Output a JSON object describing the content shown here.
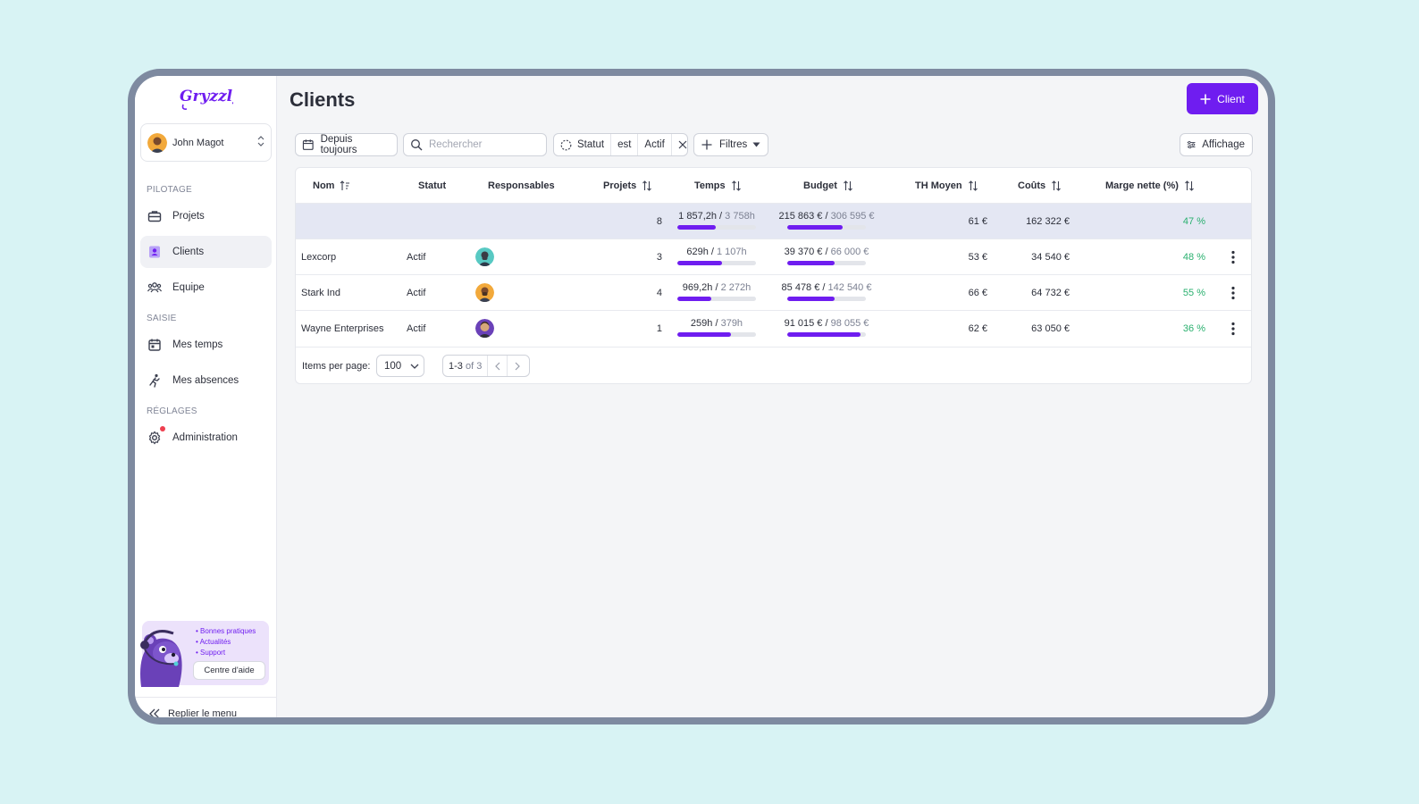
{
  "app": {
    "logo_text": "Gryzzly"
  },
  "user": {
    "name": "John Magot"
  },
  "sidebar": {
    "sections": [
      {
        "label": "PILOTAGE"
      },
      {
        "label": "SAISIE"
      },
      {
        "label": "RÉGLAGES"
      }
    ],
    "items": [
      {
        "label": "Projets",
        "icon": "briefcase-icon"
      },
      {
        "label": "Clients",
        "icon": "client-card-icon",
        "active": true
      },
      {
        "label": "Equipe",
        "icon": "team-icon"
      },
      {
        "label": "Mes temps",
        "icon": "calendar-icon"
      },
      {
        "label": "Mes absences",
        "icon": "running-person-icon"
      },
      {
        "label": "Administration",
        "icon": "gear-icon",
        "notification": true
      }
    ],
    "help": {
      "links": [
        "Bonnes pratiques",
        "Actualités",
        "Support"
      ],
      "button": "Centre d'aide"
    },
    "collapse_label": "Replier le menu"
  },
  "page": {
    "title": "Clients",
    "add_button": "Client"
  },
  "filters": {
    "period": "Depuis toujours",
    "search_placeholder": "Rechercher",
    "status_field": "Statut",
    "status_op": "est",
    "status_value": "Actif",
    "more_filters": "Filtres",
    "display": "Affichage"
  },
  "table": {
    "columns": {
      "nom": "Nom",
      "statut": "Statut",
      "responsables": "Responsables",
      "projets": "Projets",
      "temps": "Temps",
      "budget": "Budget",
      "th_moyen": "TH Moyen",
      "couts": "Coûts",
      "marge": "Marge nette (%)"
    },
    "total": {
      "projets": "8",
      "temps_used": "1 857,2h",
      "temps_total": "3 758h",
      "temps_progress": 0.49,
      "budget_used": "215 863 €",
      "budget_total": "306 595 €",
      "budget_progress": 0.7,
      "th_moyen": "61 €",
      "couts": "162 322 €",
      "marge": "47 %"
    },
    "rows": [
      {
        "nom": "Lexcorp",
        "statut": "Actif",
        "projets": "3",
        "temps_used": "629h",
        "temps_total": "1 107h",
        "temps_progress": 0.57,
        "budget_used": "39 370 €",
        "budget_total": "66 000 €",
        "budget_progress": 0.6,
        "th_moyen": "53 €",
        "couts": "34 540 €",
        "marge": "48 %"
      },
      {
        "nom": "Stark Ind",
        "statut": "Actif",
        "projets": "4",
        "temps_used": "969,2h",
        "temps_total": "2 272h",
        "temps_progress": 0.43,
        "budget_used": "85 478 €",
        "budget_total": "142 540 €",
        "budget_progress": 0.6,
        "th_moyen": "66 €",
        "couts": "64 732 €",
        "marge": "55 %"
      },
      {
        "nom": "Wayne Enterprises",
        "statut": "Actif",
        "projets": "1",
        "temps_used": "259h",
        "temps_total": "379h",
        "temps_progress": 0.68,
        "budget_used": "91 015 €",
        "budget_total": "98 055 €",
        "budget_progress": 0.93,
        "th_moyen": "62 €",
        "couts": "63 050 €",
        "marge": "36 %"
      }
    ]
  },
  "pagination": {
    "items_per_page_label": "Items per page:",
    "items_per_page": "100",
    "range": "1-3",
    "of_label": "of 3"
  },
  "colors": {
    "accent": "#6f1df0",
    "positive": "#2ab06f",
    "notification": "#ee3f4f"
  }
}
